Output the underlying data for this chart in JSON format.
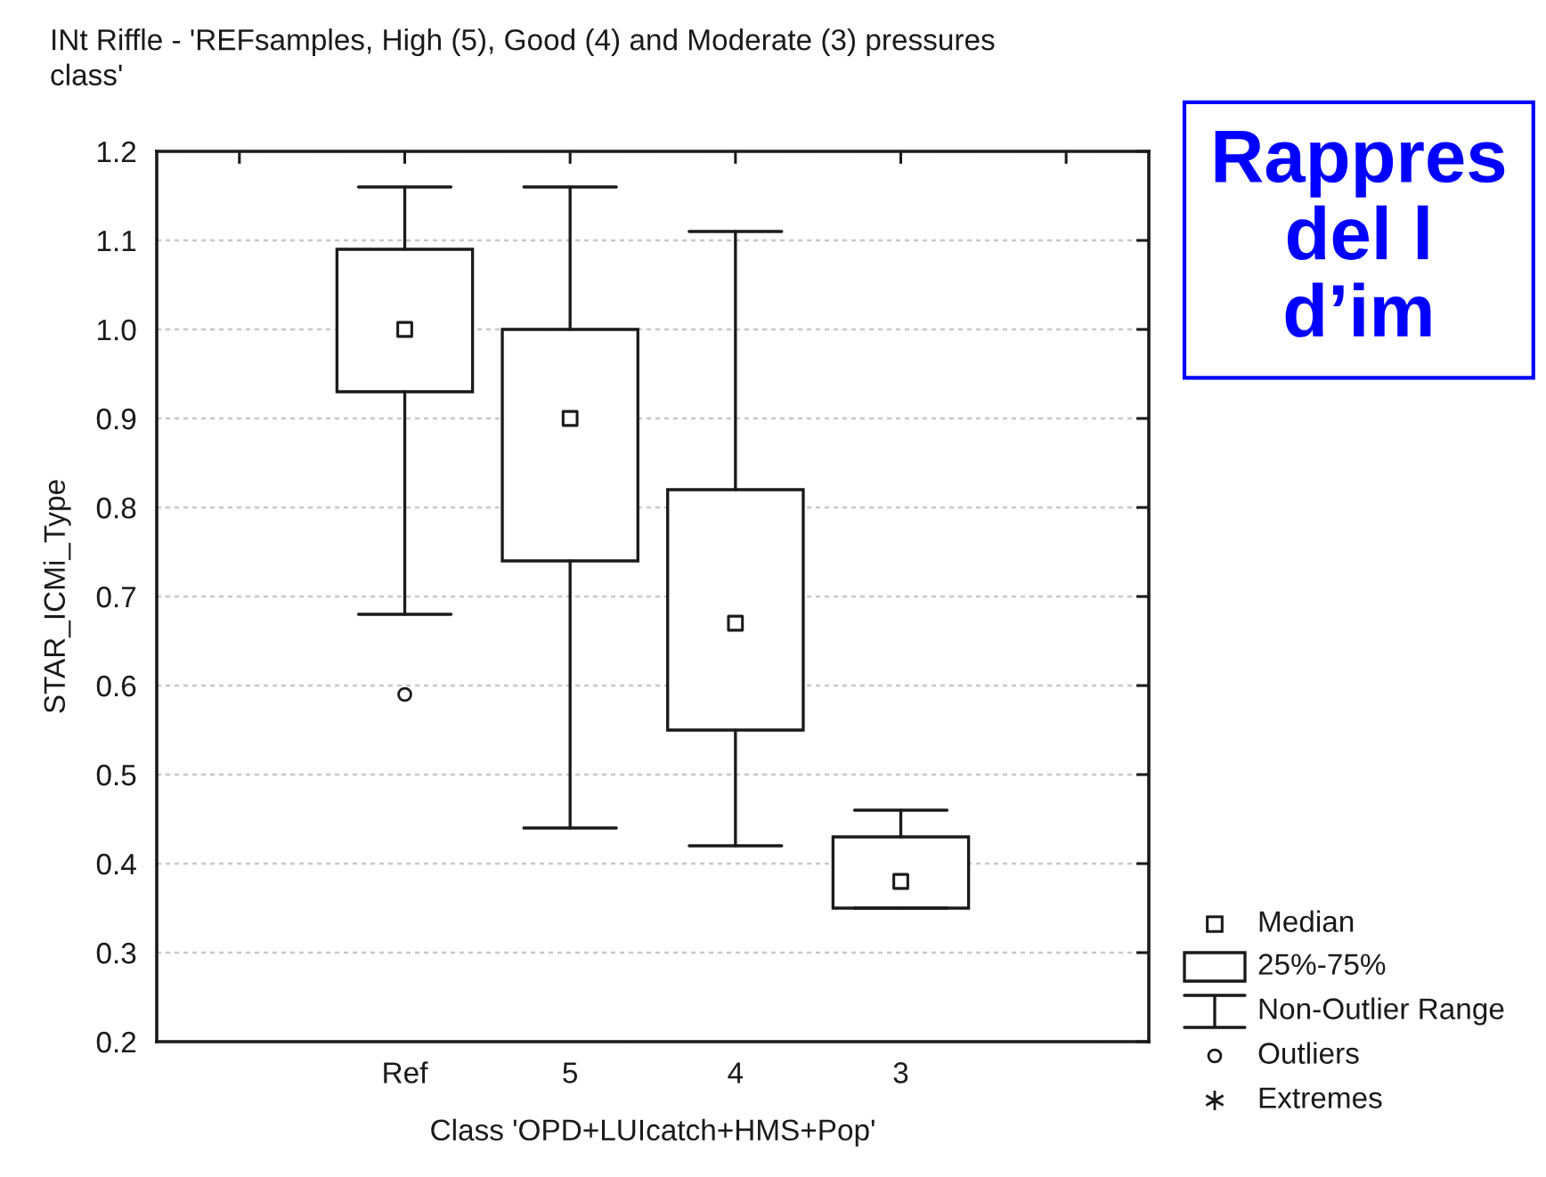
{
  "chart_data": {
    "type": "box",
    "title": "INt Riffle - 'REFsamples, High (5), Good (4) and Moderate (3) pressures\nclass'",
    "xlabel": "Class 'OPD+LUIcatch+HMS+Pop'",
    "ylabel": "STAR_ICMi_Type",
    "categories": [
      "Ref",
      "5",
      "4",
      "3"
    ],
    "boxes": [
      {
        "low": 0.68,
        "q1": 0.93,
        "median": 1.0,
        "q3": 1.09,
        "high": 1.16,
        "outliers": [
          0.59
        ]
      },
      {
        "low": 0.44,
        "q1": 0.74,
        "median": 0.9,
        "q3": 1.0,
        "high": 1.16
      },
      {
        "low": 0.42,
        "q1": 0.55,
        "median": 0.67,
        "q3": 0.82,
        "high": 1.11
      },
      {
        "low": 0.35,
        "q1": 0.35,
        "median": 0.38,
        "q3": 0.43,
        "high": 0.46
      }
    ],
    "ylim": [
      0.2,
      1.2
    ],
    "yticks": [
      0.2,
      0.3,
      0.4,
      0.5,
      0.6,
      0.7,
      0.8,
      0.9,
      {
        "value": 1,
        "label": "1.0"
      },
      1.1,
      1.2
    ],
    "grid": "y",
    "annotations": [
      "Median",
      "25%-75%",
      "Non-Outlier Range",
      "Outliers",
      "Extremes",
      "Rappres",
      "del l",
      "d’im"
    ]
  }
}
